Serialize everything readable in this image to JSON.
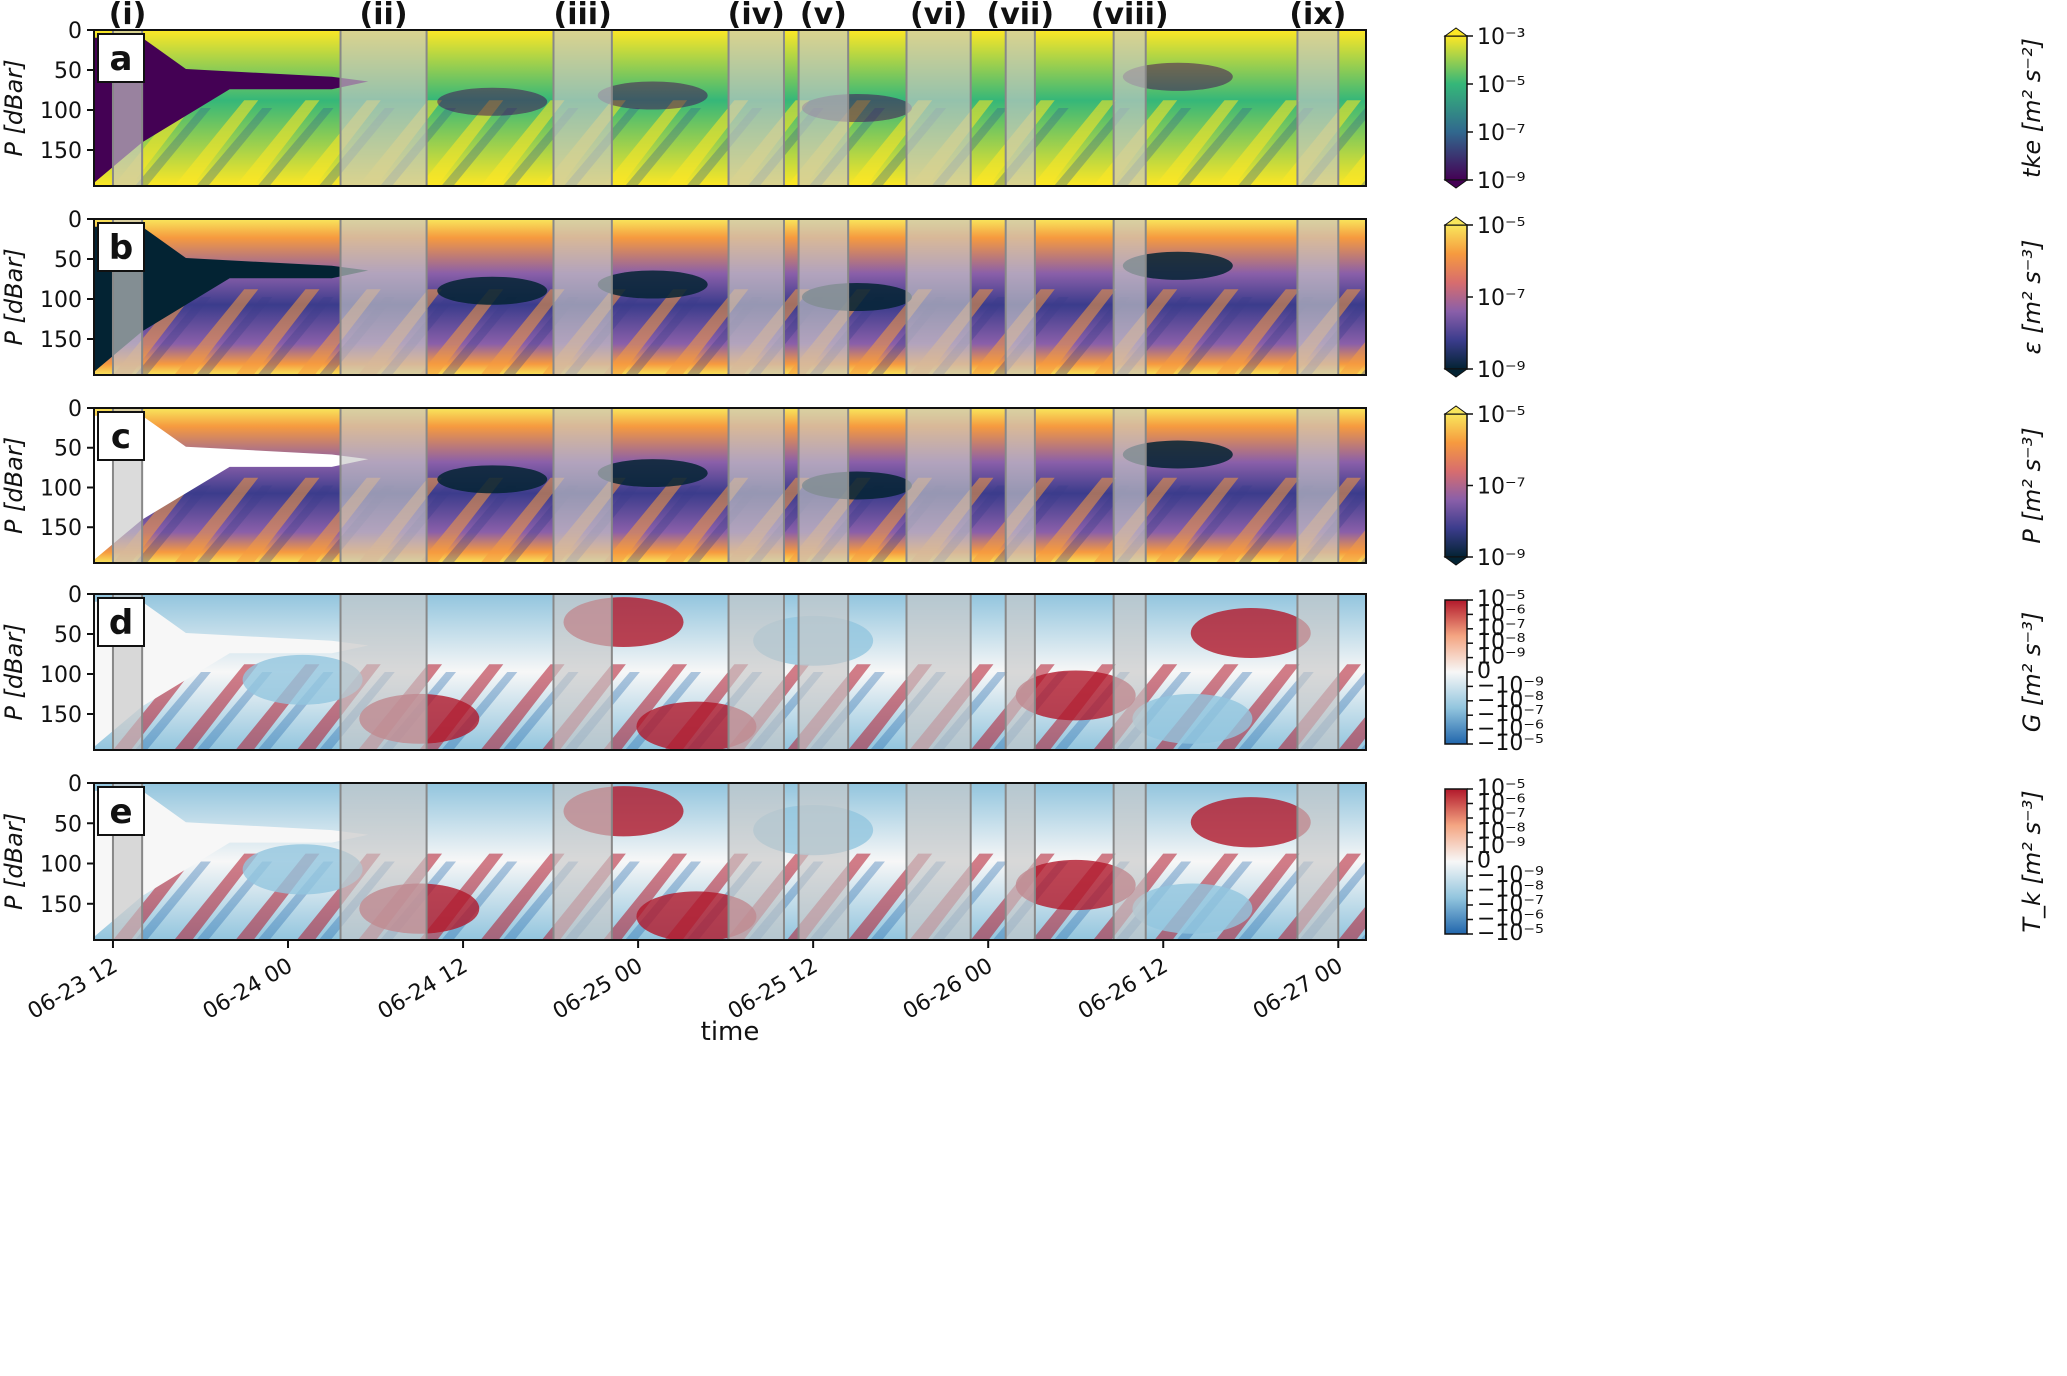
{
  "chart_data": [
    {
      "type": "heatmap",
      "panel": "a",
      "ylabel": "P [dBar]",
      "yticks": [
        "0",
        "50",
        "100",
        "150"
      ],
      "ylim": [
        195,
        0
      ],
      "colorbar_label": "tke [m² s⁻²]",
      "colorbar_ticks": [
        "10⁻³",
        "10⁻⁵",
        "10⁻⁷",
        "10⁻⁹"
      ],
      "colormap": "viridis",
      "colormap_colors": [
        "#440154",
        "#31688e",
        "#35b779",
        "#fde725"
      ],
      "log_range": [
        -9,
        -3
      ]
    },
    {
      "type": "heatmap",
      "panel": "b",
      "ylabel": "P [dBar]",
      "yticks": [
        "0",
        "50",
        "100",
        "150"
      ],
      "ylim": [
        195,
        0
      ],
      "colorbar_label": "ε [m² s⁻³]",
      "colorbar_ticks": [
        "10⁻⁵",
        "10⁻⁷",
        "10⁻⁹"
      ],
      "colormap": "thermal",
      "colormap_colors": [
        "#032333",
        "#3b3c8c",
        "#8a5fa9",
        "#d76d6e",
        "#f69a3f",
        "#f8e65c"
      ],
      "log_range": [
        -9,
        -5
      ]
    },
    {
      "type": "heatmap",
      "panel": "c",
      "ylabel": "P [dBar]",
      "yticks": [
        "0",
        "50",
        "100",
        "150"
      ],
      "ylim": [
        195,
        0
      ],
      "colorbar_label": "P [m² s⁻³]",
      "colorbar_ticks": [
        "10⁻⁵",
        "10⁻⁷",
        "10⁻⁹"
      ],
      "colormap": "thermal",
      "colormap_colors": [
        "#032333",
        "#3b3c8c",
        "#8a5fa9",
        "#d76d6e",
        "#f69a3f",
        "#f8e65c"
      ],
      "log_range": [
        -9,
        -5
      ]
    },
    {
      "type": "heatmap",
      "panel": "d",
      "ylabel": "P [dBar]",
      "yticks": [
        "0",
        "50",
        "100",
        "150"
      ],
      "ylim": [
        195,
        0
      ],
      "colorbar_label": "G [m² s⁻³]",
      "colorbar_ticks": [
        "10⁻⁵",
        "10⁻⁶",
        "10⁻⁷",
        "10⁻⁸",
        "10⁻⁹",
        "0",
        "−10⁻⁹",
        "−10⁻⁸",
        "−10⁻⁷",
        "−10⁻⁶",
        "−10⁻⁵"
      ],
      "colormap": "RdBu_r",
      "colormap_colors": [
        "#2166ac",
        "#92c5de",
        "#f7f7f7",
        "#f4a582",
        "#b2182b"
      ]
    },
    {
      "type": "heatmap",
      "panel": "e",
      "ylabel": "P [dBar]",
      "yticks": [
        "0",
        "50",
        "100",
        "150"
      ],
      "ylim": [
        195,
        0
      ],
      "colorbar_label": "T_k [m² s⁻³]",
      "colorbar_ticks": [
        "10⁻⁵",
        "10⁻⁶",
        "10⁻⁷",
        "10⁻⁸",
        "10⁻⁹",
        "0",
        "−10⁻⁹",
        "−10⁻⁸",
        "−10⁻⁷",
        "−10⁻⁶",
        "−10⁻⁵"
      ],
      "colormap": "RdBu_r",
      "colormap_colors": [
        "#2166ac",
        "#92c5de",
        "#f7f7f7",
        "#f4a582",
        "#b2182b"
      ]
    }
  ],
  "shared_x": {
    "xlabel": "time",
    "tick_labels": [
      "06-23 12",
      "06-24 00",
      "06-24 12",
      "06-25 00",
      "06-25 12",
      "06-26 00",
      "06-26 12",
      "06-27 00"
    ],
    "tick_hours": [
      12,
      24,
      36,
      48,
      60,
      72,
      84,
      96
    ],
    "xlim_hours": [
      10.7,
      97.9
    ]
  },
  "shaded_intervals": [
    {
      "label": "(i)",
      "start_hour": 12.0,
      "end_hour": 14.0
    },
    {
      "label": "(ii)",
      "start_hour": 27.6,
      "end_hour": 33.5
    },
    {
      "label": "(iii)",
      "start_hour": 42.2,
      "end_hour": 46.2
    },
    {
      "label": "(iv)",
      "start_hour": 54.2,
      "end_hour": 58.0
    },
    {
      "label": "(v)",
      "start_hour": 59.0,
      "end_hour": 62.4
    },
    {
      "label": "(vi)",
      "start_hour": 66.4,
      "end_hour": 70.8
    },
    {
      "label": "(vii)",
      "start_hour": 73.2,
      "end_hour": 75.2
    },
    {
      "label": "(viii)",
      "start_hour": 80.6,
      "end_hour": 82.8
    },
    {
      "label": "(ix)",
      "start_hour": 93.2,
      "end_hour": 96.0
    }
  ],
  "shade_color": "#c8c8c8"
}
